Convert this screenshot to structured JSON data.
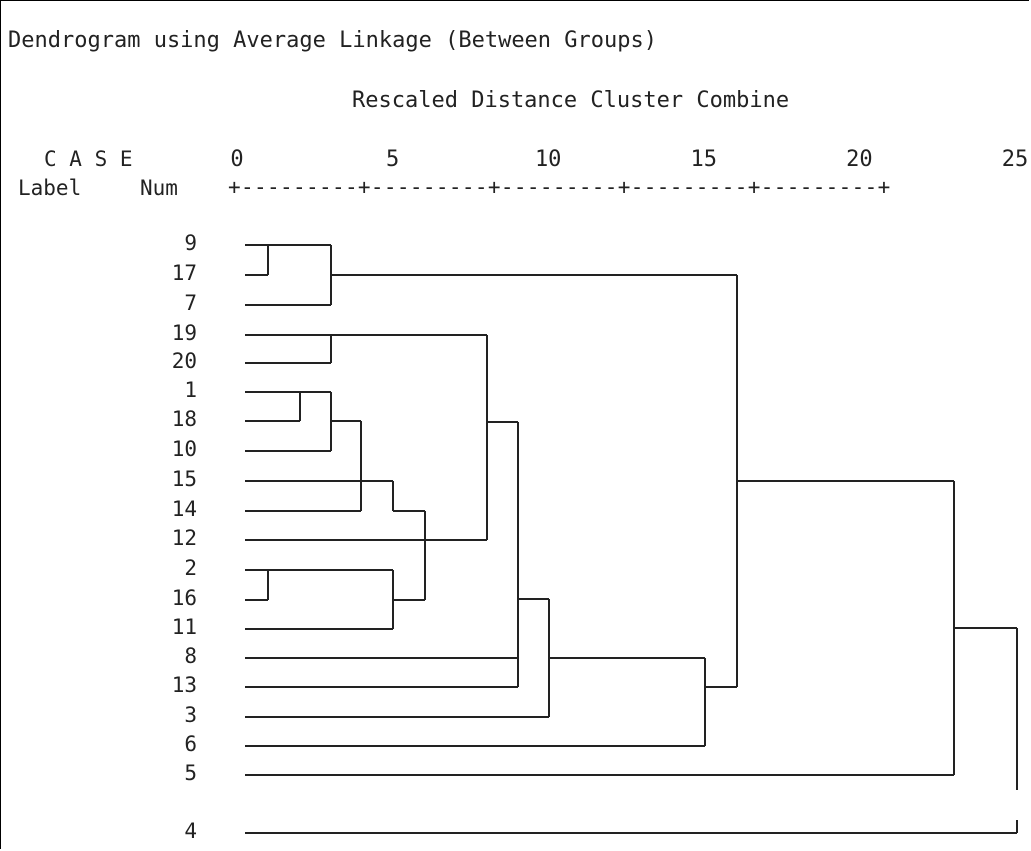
{
  "title": "Dendrogram using Average Linkage (Between Groups)",
  "subtitle": "Rescaled Distance Cluster Combine",
  "header": {
    "case_label": "C A S E",
    "label_col": "Label",
    "num_col": "Num",
    "axis_rule": "+---------+---------+---------+---------+---------+"
  },
  "axis": {
    "ticks": [
      "0",
      "5",
      "10",
      "15",
      "20",
      "25"
    ],
    "range": [
      0,
      25
    ]
  },
  "cases": [
    "9",
    "17",
    "7",
    "19",
    "20",
    "1",
    "18",
    "10",
    "15",
    "14",
    "12",
    "2",
    "16",
    "11",
    "8",
    "13",
    "3",
    "6",
    "5",
    "4"
  ],
  "linkage": "average",
  "merges": [
    {
      "left": "9",
      "right": "17",
      "distance": 1
    },
    {
      "left": "9+17",
      "right": "7",
      "distance": 3
    },
    {
      "left": "19",
      "right": "20",
      "distance": 3
    },
    {
      "left": "1",
      "right": "18",
      "distance": 2
    },
    {
      "left": "1+18",
      "right": "10",
      "distance": 3
    },
    {
      "left": "1+18+10",
      "right": "15",
      "distance": 4
    },
    {
      "left": "1+18+10+15",
      "right": "14",
      "distance": 5
    },
    {
      "left": "2",
      "right": "16",
      "distance": 1
    },
    {
      "left": "2+16",
      "right": "11",
      "distance": 5
    },
    {
      "left": "1..14",
      "right": "12",
      "distance": 6
    },
    {
      "left": "19+20",
      "right": "1..11",
      "distance": 8
    },
    {
      "left": "19..11",
      "right": "8+13",
      "distance": 9
    },
    {
      "left": "19..13",
      "right": "3",
      "distance": 10
    },
    {
      "left": "19..3",
      "right": "6",
      "distance": 15
    },
    {
      "left": "9+17+7",
      "right": "19..6",
      "distance": 16
    },
    {
      "left": "all",
      "right": "5",
      "distance": 23
    },
    {
      "left": "all+5",
      "right": "4",
      "distance": 25
    }
  ]
}
